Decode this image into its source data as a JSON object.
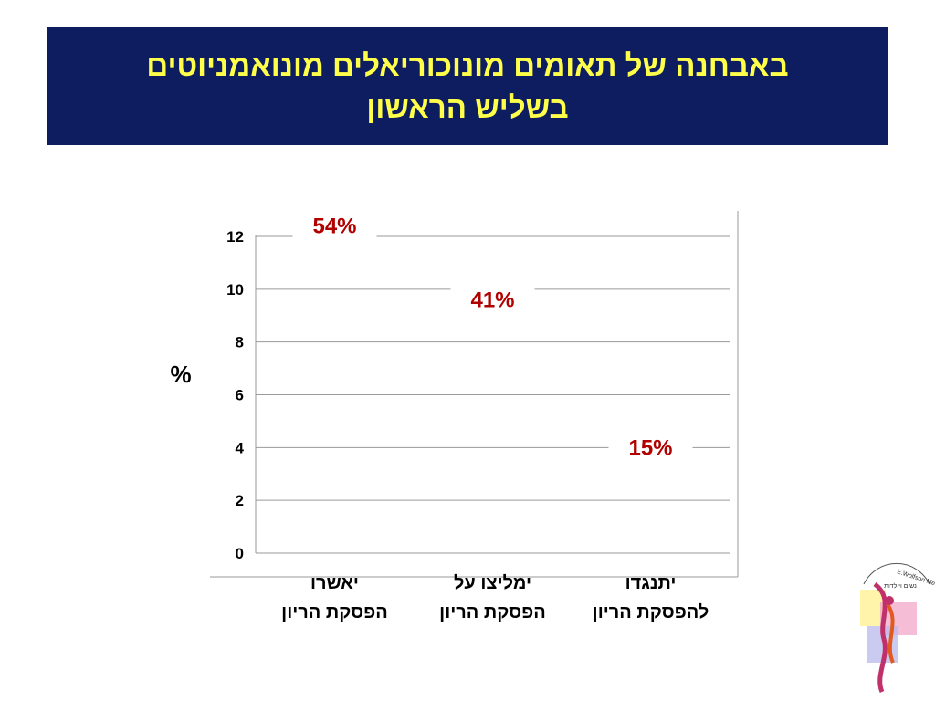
{
  "header": {
    "title_line1": "באבחנה של תאומים מונוכוריאלים מונואמניוטים",
    "title_line2": "בשליש הראשון"
  },
  "chart_data": {
    "type": "bar",
    "ylabel": "%",
    "xlabel": "",
    "ylim": [
      0,
      12
    ],
    "yticks": [
      0,
      2,
      4,
      6,
      8,
      10,
      12
    ],
    "grid": true,
    "categories": [
      [
        "יאשרו",
        "הפסקת הריון"
      ],
      [
        "ימליצו על",
        "הפסקת הריון"
      ],
      [
        "יתנגדו",
        "להפסקת הריון"
      ]
    ],
    "data_labels": [
      "54%",
      "41%",
      "15%"
    ],
    "values": [
      54,
      41,
      15
    ],
    "label_y_positions": [
      12.4,
      9.6,
      4.0
    ],
    "label_color": "#b00000"
  },
  "logo": {
    "text_arc": "E.Wolfson Medical Center Obstetrics & Gynecology",
    "text_dept": "נשים ויולדות"
  }
}
